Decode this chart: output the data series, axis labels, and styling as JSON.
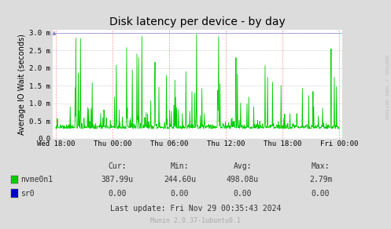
{
  "title": "Disk latency per device - by day",
  "ylabel": "Average IO Wait (seconds)",
  "bg_color": "#DCDCDC",
  "plot_bg_color": "#FFFFFF",
  "grid_color_h": "#AAAACC",
  "grid_color_v": "#FF9999",
  "line_color_nvme": "#00CC00",
  "line_color_sr0": "#0000CC",
  "x_tick_labels": [
    "Wed 18:00",
    "Thu 00:00",
    "Thu 06:00",
    "Thu 12:00",
    "Thu 18:00",
    "Fri 00:00"
  ],
  "y_tick_labels": [
    "0.0",
    "0.5 m",
    "1.0 m",
    "1.5 m",
    "2.0 m",
    "2.5 m",
    "3.0 m"
  ],
  "y_tick_vals": [
    0.0,
    0.0005,
    0.001,
    0.0015,
    0.002,
    0.0025,
    0.003
  ],
  "ylim": [
    0.0,
    0.003
  ],
  "legend_nvme": "nvme0n1",
  "legend_sr0": "sr0",
  "cur_nvme": "387.99u",
  "min_nvme": "244.60u",
  "avg_nvme": "498.08u",
  "max_nvme": "2.79m",
  "cur_sr0": "0.00",
  "min_sr0": "0.00",
  "avg_sr0": "0.00",
  "max_sr0": "0.00",
  "last_update": "Last update: Fri Nov 29 00:35:43 2024",
  "munin_version": "Munin 2.0.37-1ubuntu0.1",
  "watermark": "RRDTOOL / TOBI OETIKER"
}
